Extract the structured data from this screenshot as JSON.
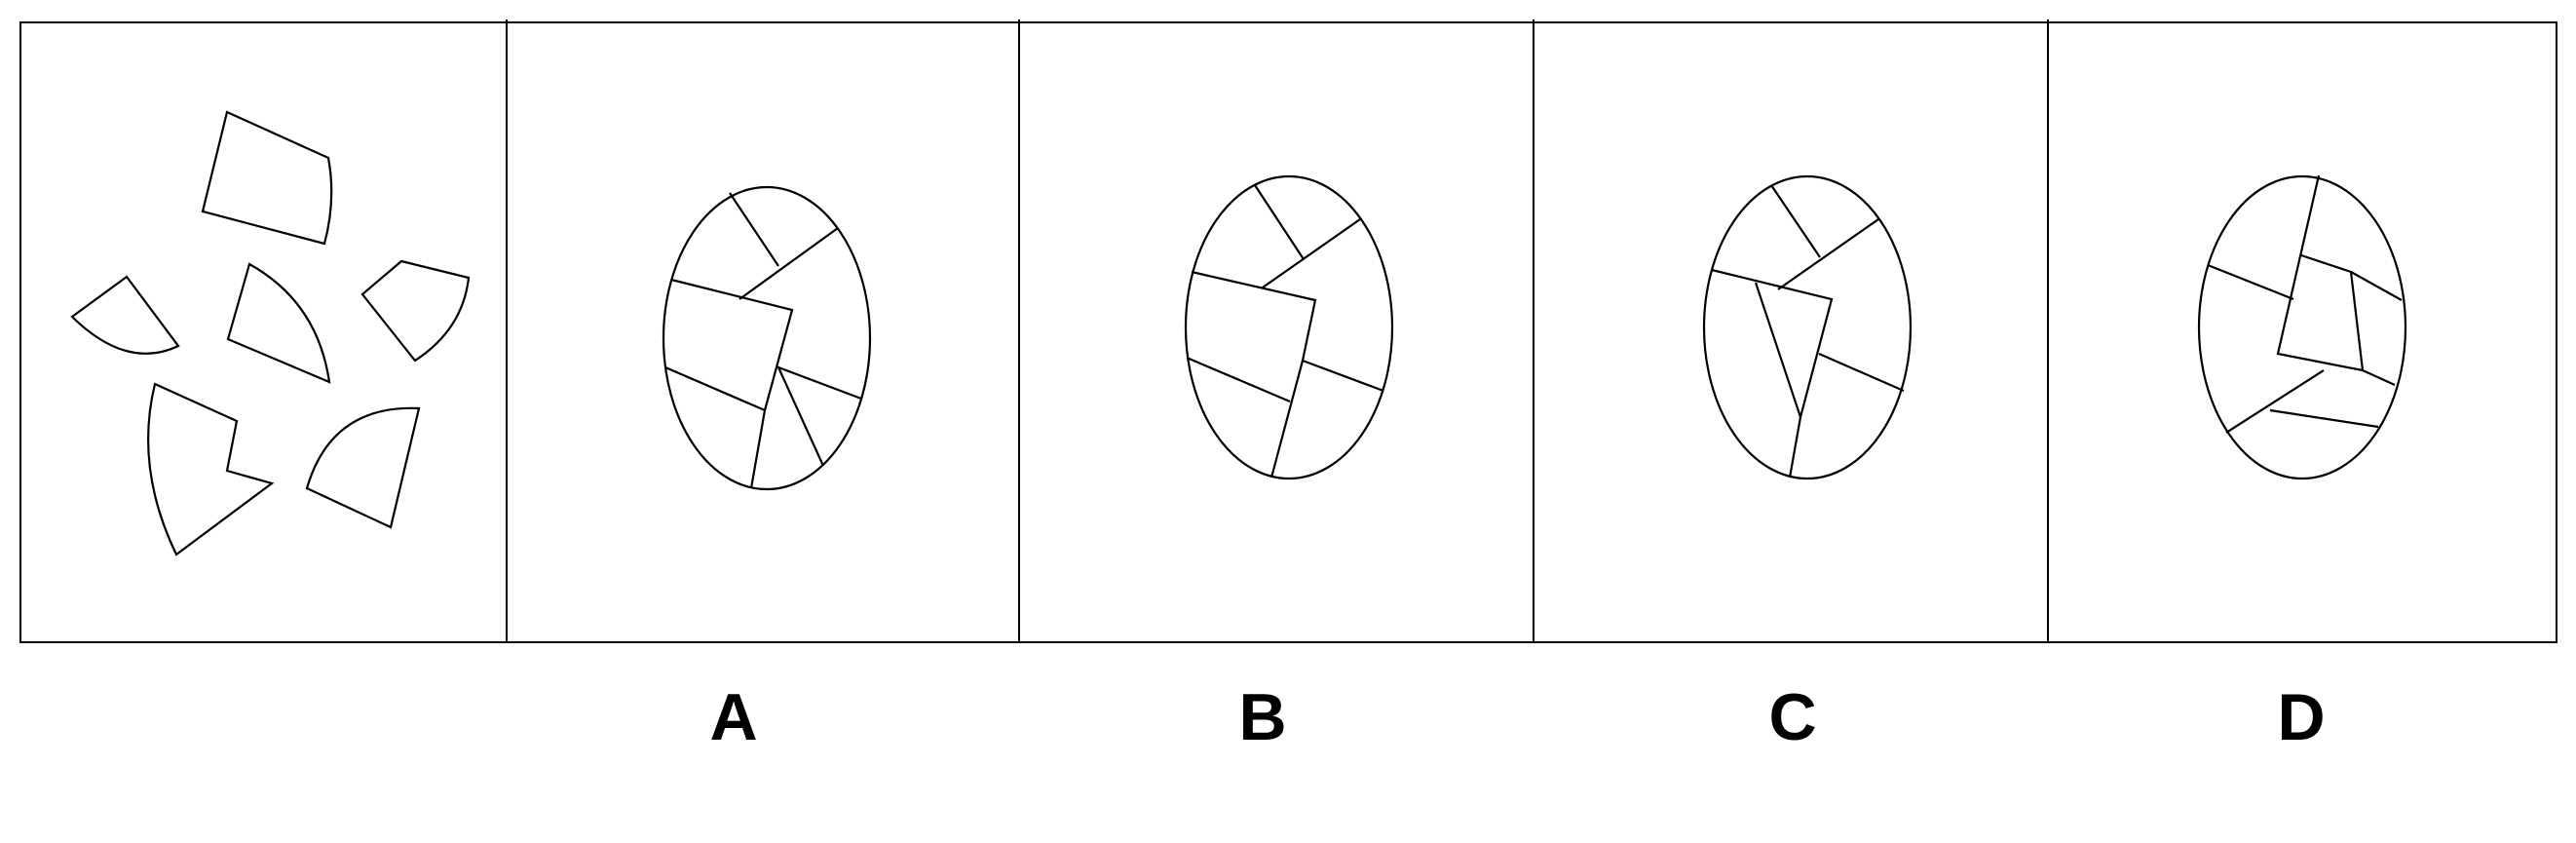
{
  "options": [
    {
      "label": "A"
    },
    {
      "label": "B"
    },
    {
      "label": "C"
    },
    {
      "label": "D"
    }
  ]
}
